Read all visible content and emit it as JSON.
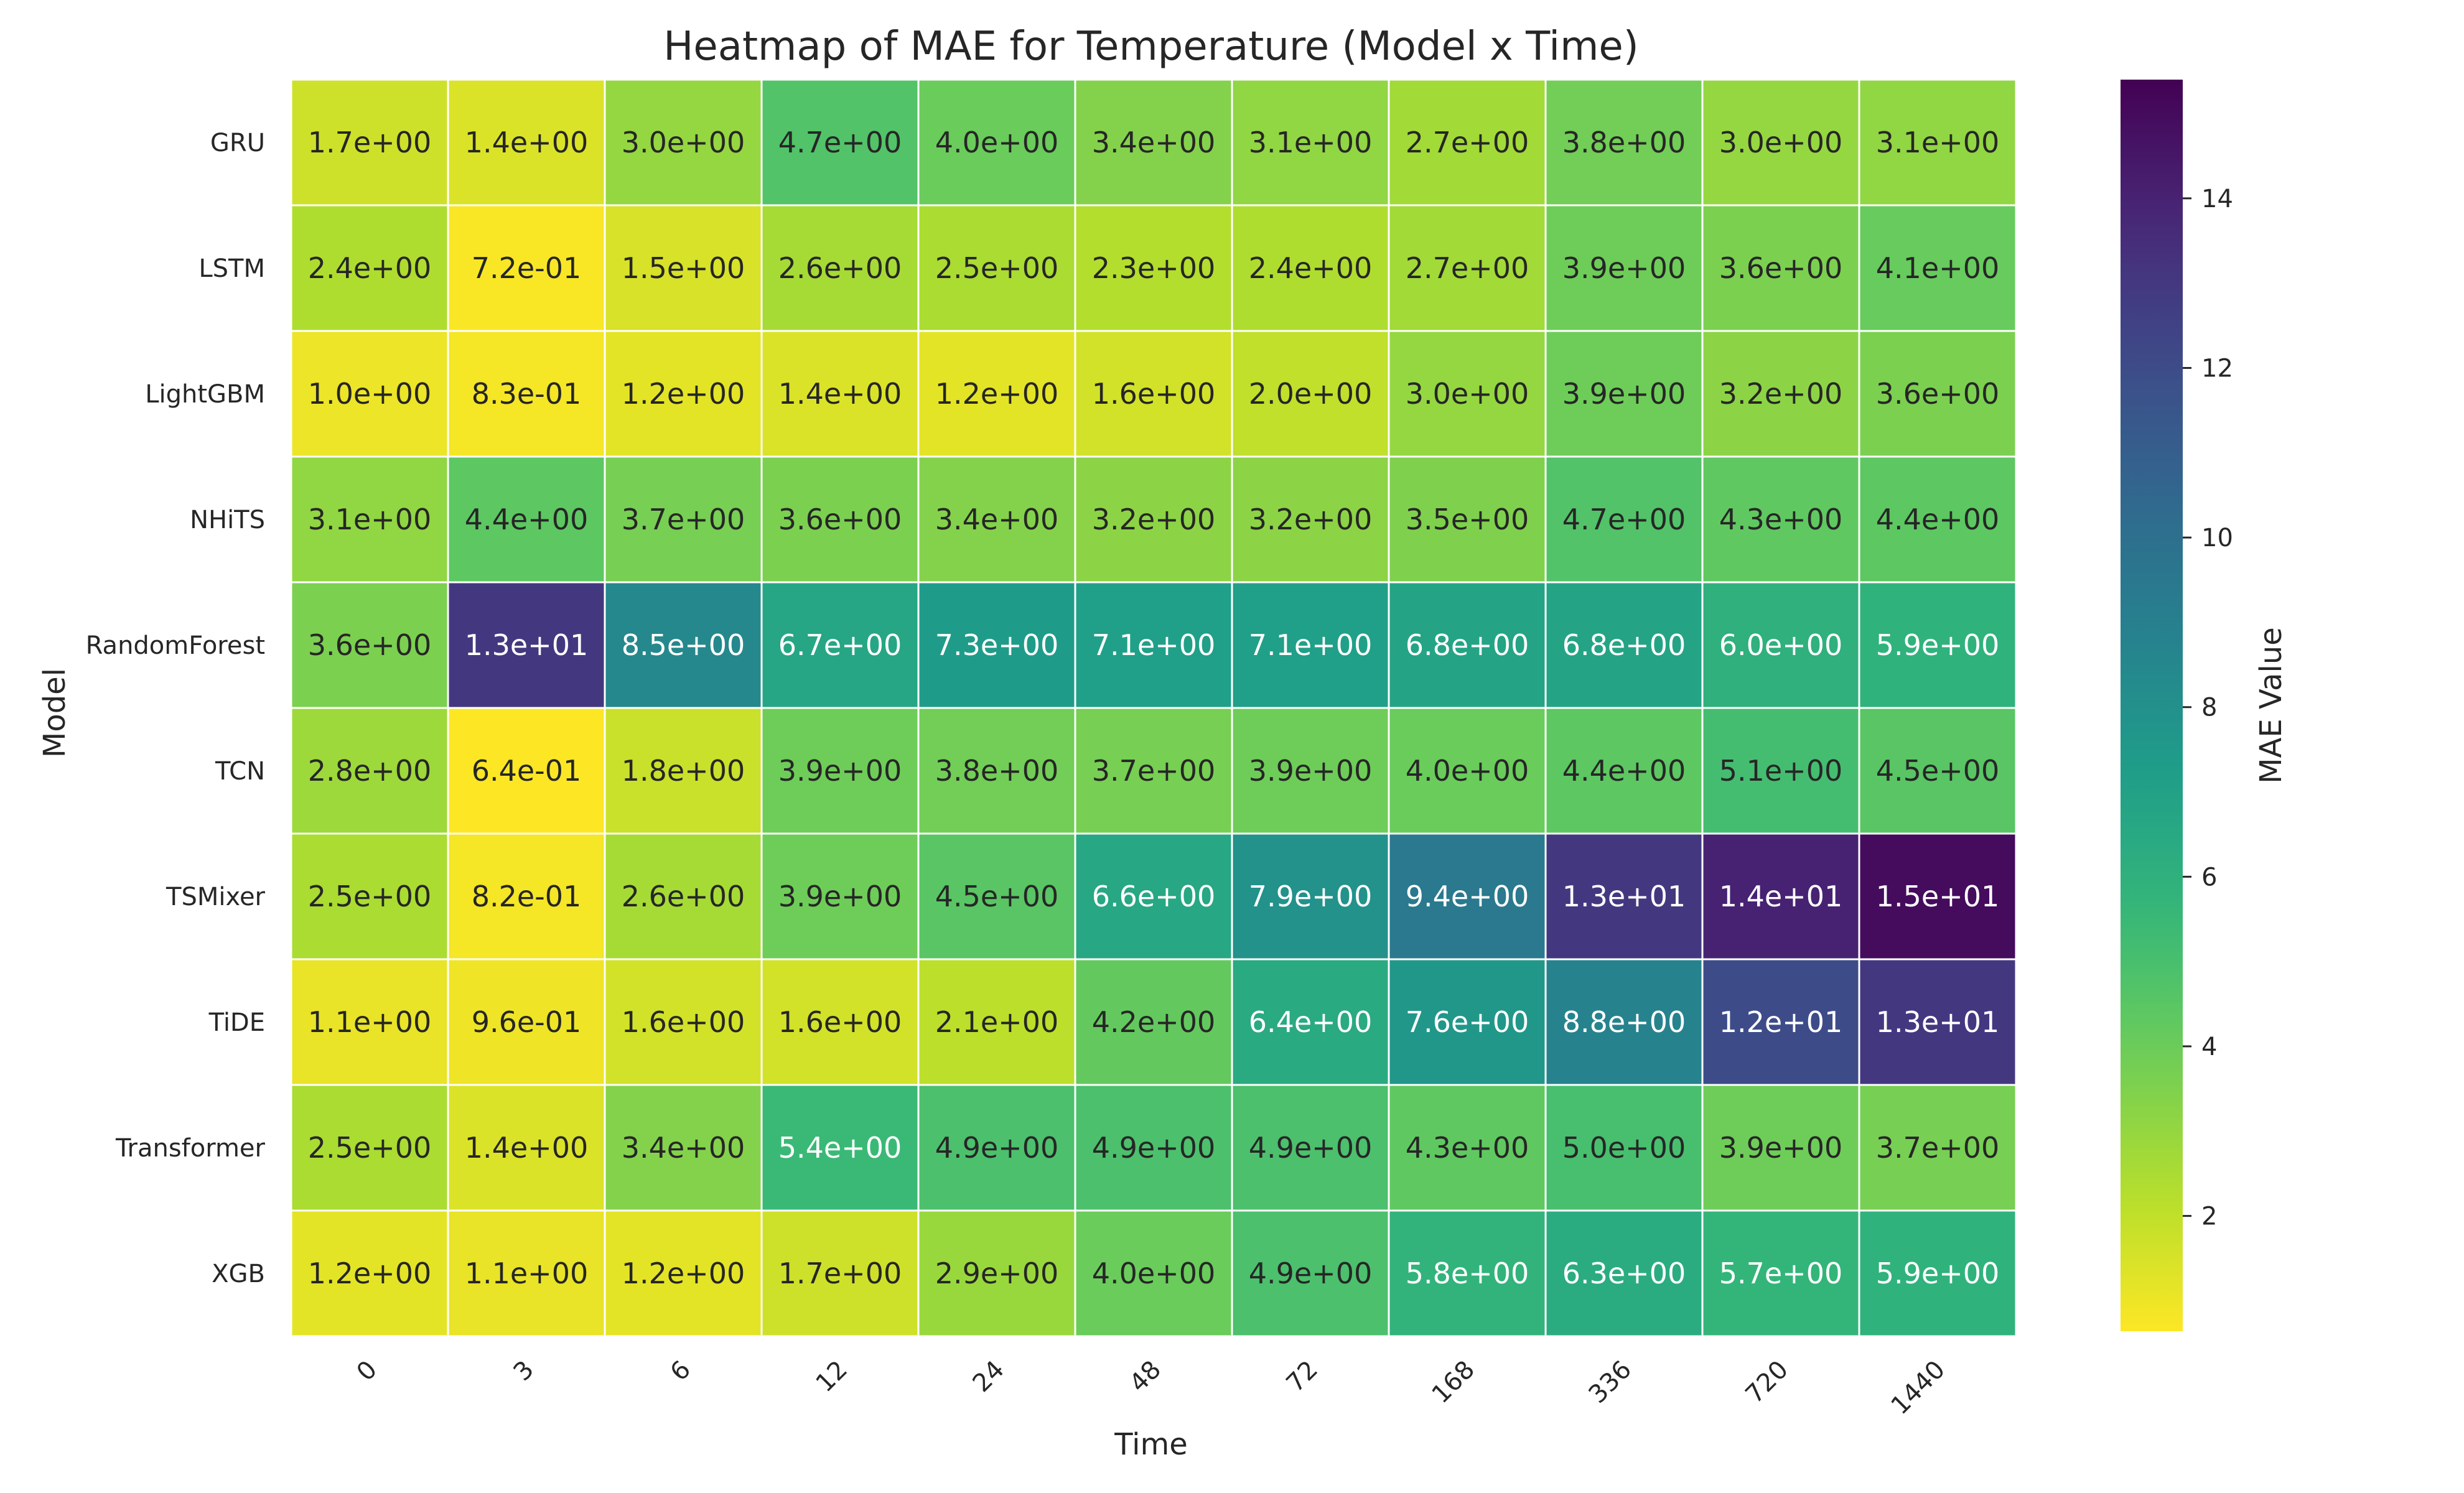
{
  "chart_data": {
    "type": "heatmap",
    "title": "Heatmap of MAE for Temperature (Model x Time)",
    "xlabel": "Time",
    "ylabel": "Model",
    "colorbar_label": "MAE Value",
    "colormap": "viridis_r",
    "vmin": 0.64,
    "vmax": 15.4,
    "colorbar_ticks": [
      2,
      4,
      6,
      8,
      10,
      12,
      14
    ],
    "x_categories": [
      "0",
      "3",
      "6",
      "12",
      "24",
      "48",
      "72",
      "168",
      "336",
      "720",
      "1440"
    ],
    "y_categories": [
      "GRU",
      "LSTM",
      "LightGBM",
      "NHiTS",
      "RandomForest",
      "TCN",
      "TSMixer",
      "TiDE",
      "Transformer",
      "XGB"
    ],
    "values": [
      [
        1.7,
        1.4,
        3.0,
        4.7,
        4.0,
        3.4,
        3.1,
        2.7,
        3.8,
        3.0,
        3.1
      ],
      [
        2.4,
        0.72,
        1.5,
        2.6,
        2.5,
        2.3,
        2.4,
        2.7,
        3.9,
        3.6,
        4.1
      ],
      [
        1.0,
        0.83,
        1.2,
        1.4,
        1.2,
        1.6,
        2.0,
        3.0,
        3.9,
        3.2,
        3.6
      ],
      [
        3.1,
        4.4,
        3.7,
        3.6,
        3.4,
        3.2,
        3.2,
        3.5,
        4.7,
        4.3,
        4.4
      ],
      [
        3.6,
        13.0,
        8.5,
        6.7,
        7.3,
        7.1,
        7.1,
        6.8,
        6.8,
        6.0,
        5.9
      ],
      [
        2.8,
        0.64,
        1.8,
        3.9,
        3.8,
        3.7,
        3.9,
        4.0,
        4.4,
        5.1,
        4.5
      ],
      [
        2.5,
        0.82,
        2.6,
        3.9,
        4.5,
        6.6,
        7.9,
        9.4,
        13.0,
        14.0,
        15.0
      ],
      [
        1.1,
        0.96,
        1.6,
        1.6,
        2.1,
        4.2,
        6.4,
        7.6,
        8.8,
        12.0,
        13.0
      ],
      [
        2.5,
        1.4,
        3.4,
        5.4,
        4.9,
        4.9,
        4.9,
        4.3,
        5.0,
        3.9,
        3.7
      ],
      [
        1.2,
        1.1,
        1.2,
        1.7,
        2.9,
        4.0,
        4.9,
        5.8,
        6.3,
        5.7,
        5.9
      ]
    ],
    "labels": [
      [
        "1.7e+00",
        "1.4e+00",
        "3.0e+00",
        "4.7e+00",
        "4.0e+00",
        "3.4e+00",
        "3.1e+00",
        "2.7e+00",
        "3.8e+00",
        "3.0e+00",
        "3.1e+00"
      ],
      [
        "2.4e+00",
        "7.2e-01",
        "1.5e+00",
        "2.6e+00",
        "2.5e+00",
        "2.3e+00",
        "2.4e+00",
        "2.7e+00",
        "3.9e+00",
        "3.6e+00",
        "4.1e+00"
      ],
      [
        "1.0e+00",
        "8.3e-01",
        "1.2e+00",
        "1.4e+00",
        "1.2e+00",
        "1.6e+00",
        "2.0e+00",
        "3.0e+00",
        "3.9e+00",
        "3.2e+00",
        "3.6e+00"
      ],
      [
        "3.1e+00",
        "4.4e+00",
        "3.7e+00",
        "3.6e+00",
        "3.4e+00",
        "3.2e+00",
        "3.2e+00",
        "3.5e+00",
        "4.7e+00",
        "4.3e+00",
        "4.4e+00"
      ],
      [
        "3.6e+00",
        "1.3e+01",
        "8.5e+00",
        "6.7e+00",
        "7.3e+00",
        "7.1e+00",
        "7.1e+00",
        "6.8e+00",
        "6.8e+00",
        "6.0e+00",
        "5.9e+00"
      ],
      [
        "2.8e+00",
        "6.4e-01",
        "1.8e+00",
        "3.9e+00",
        "3.8e+00",
        "3.7e+00",
        "3.9e+00",
        "4.0e+00",
        "4.4e+00",
        "5.1e+00",
        "4.5e+00"
      ],
      [
        "2.5e+00",
        "8.2e-01",
        "2.6e+00",
        "3.9e+00",
        "4.5e+00",
        "6.6e+00",
        "7.9e+00",
        "9.4e+00",
        "1.3e+01",
        "1.4e+01",
        "1.5e+01"
      ],
      [
        "1.1e+00",
        "9.6e-01",
        "1.6e+00",
        "1.6e+00",
        "2.1e+00",
        "4.2e+00",
        "6.4e+00",
        "7.6e+00",
        "8.8e+00",
        "1.2e+01",
        "1.3e+01"
      ],
      [
        "2.5e+00",
        "1.4e+00",
        "3.4e+00",
        "5.4e+00",
        "4.9e+00",
        "4.9e+00",
        "4.9e+00",
        "4.3e+00",
        "5.0e+00",
        "3.9e+00",
        "3.7e+00"
      ],
      [
        "1.2e+00",
        "1.1e+00",
        "1.2e+00",
        "1.7e+00",
        "2.9e+00",
        "4.0e+00",
        "4.9e+00",
        "5.8e+00",
        "6.3e+00",
        "5.7e+00",
        "5.9e+00"
      ]
    ]
  }
}
